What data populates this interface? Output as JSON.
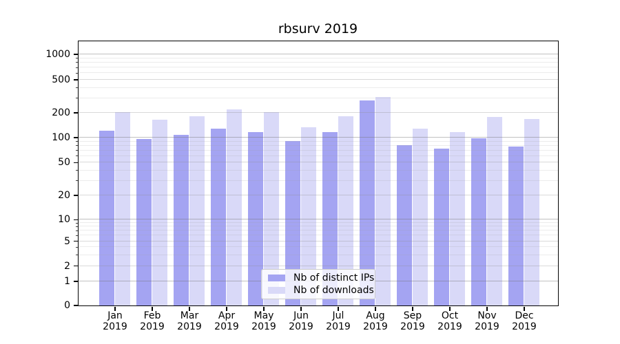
{
  "chart_data": {
    "type": "bar",
    "title": "rbsurv 2019",
    "categories": [
      "Jan 2019",
      "Feb 2019",
      "Mar 2019",
      "Apr 2019",
      "May 2019",
      "Jun 2019",
      "Jul 2019",
      "Aug 2019",
      "Sep 2019",
      "Oct 2019",
      "Nov 2019",
      "Dec 2019"
    ],
    "series": [
      {
        "name": "Nb of distinct IPs",
        "color": "#a4a4f2",
        "values": [
          121,
          95,
          107,
          128,
          116,
          90,
          116,
          277,
          80,
          73,
          97,
          77
        ]
      },
      {
        "name": "Nb of downloads",
        "color": "#d9d9f8",
        "values": [
          201,
          162,
          181,
          219,
          203,
          131,
          181,
          310,
          127,
          115,
          175,
          167
        ]
      }
    ],
    "y_axis": {
      "scale": "symlog",
      "tick_values": [
        0,
        1,
        2,
        5,
        10,
        20,
        50,
        100,
        200,
        500,
        1000
      ],
      "tick_labels": [
        "0",
        "1",
        "2",
        "5",
        "10",
        "20",
        "50",
        "100",
        "200",
        "500",
        "1000"
      ],
      "minor_mid_values": [
        2,
        5,
        20,
        50,
        200,
        500
      ],
      "minor_values": [
        3,
        4,
        6,
        7,
        8,
        9,
        30,
        40,
        60,
        70,
        80,
        90,
        300,
        400,
        600,
        700,
        800,
        900
      ],
      "range_top": 1300
    },
    "grid": true,
    "legend": {
      "position": "lower center",
      "entries": [
        "Nb of distinct IPs",
        "Nb of downloads"
      ]
    }
  },
  "colors": {
    "bar_distinct_ips": "#a4a4f2",
    "bar_downloads": "#d9d9f8",
    "spine": "#000000",
    "background": "#ffffff"
  }
}
